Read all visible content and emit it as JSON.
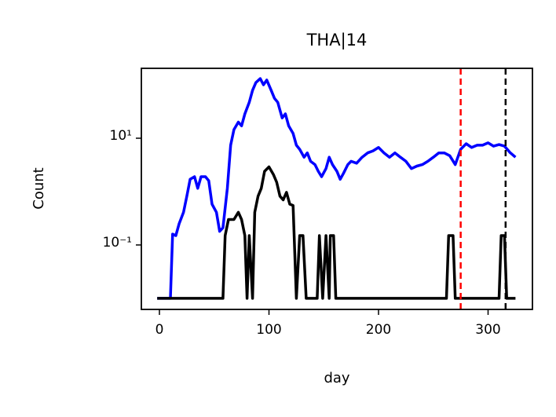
{
  "chart_data": {
    "type": "line",
    "title": "THA|14",
    "xlabel": "day",
    "ylabel": "Count",
    "xlim": [
      -16.5,
      340.5
    ],
    "xticks": [
      0,
      100,
      200,
      300
    ],
    "ylim": [
      0.0062,
      204
    ],
    "yticks": [
      {
        "value": 0.1,
        "label": "10⁻¹"
      },
      {
        "value": 10,
        "label": "10¹"
      }
    ],
    "log_y": true,
    "grid": false,
    "series": [
      {
        "color": "#0000ff",
        "x": [
          -2,
          10,
          12,
          15,
          18,
          22,
          25,
          28,
          32,
          35,
          38,
          42,
          45,
          48,
          52,
          55,
          58,
          62,
          65,
          68,
          72,
          75,
          78,
          82,
          85,
          88,
          92,
          95,
          98,
          102,
          105,
          108,
          112,
          115,
          118,
          122,
          125,
          128,
          132,
          135,
          138,
          142,
          145,
          148,
          152,
          155,
          158,
          162,
          165,
          168,
          172,
          175,
          180,
          185,
          190,
          195,
          200,
          205,
          210,
          215,
          220,
          225,
          230,
          235,
          240,
          245,
          250,
          255,
          260,
          265,
          270,
          275,
          280,
          285,
          290,
          295,
          300,
          305,
          310,
          315,
          320,
          325
        ],
        "values": [
          0.01,
          0.01,
          0.16,
          0.15,
          0.25,
          0.41,
          0.82,
          1.7,
          1.9,
          1.15,
          1.9,
          1.9,
          1.6,
          0.58,
          0.41,
          0.18,
          0.21,
          1.15,
          7.4,
          14.5,
          20,
          17,
          28.6,
          47,
          79,
          110,
          131,
          100,
          123,
          79,
          56,
          47,
          24,
          28.6,
          17,
          12.3,
          7.4,
          6.2,
          4.4,
          5.3,
          3.7,
          3.2,
          2.4,
          1.9,
          2.7,
          4.4,
          3.2,
          2.4,
          1.7,
          2.2,
          3.2,
          3.7,
          3.4,
          4.4,
          5.3,
          5.8,
          6.7,
          5.3,
          4.4,
          5.3,
          4.4,
          3.7,
          2.7,
          3.0,
          3.2,
          3.7,
          4.4,
          5.3,
          5.3,
          4.7,
          3.2,
          6.2,
          7.9,
          6.7,
          7.4,
          7.4,
          8.2,
          7.1,
          7.6,
          7.1,
          5.4,
          4.4
        ]
      },
      {
        "color": "#000000",
        "x": [
          -2,
          58,
          60,
          63,
          68,
          72,
          75,
          78,
          80,
          82,
          85,
          87,
          90,
          93,
          96,
          100,
          104,
          107,
          110,
          113,
          116,
          119,
          122,
          125,
          128,
          131,
          134,
          144,
          146,
          149,
          152,
          155,
          156,
          159,
          161,
          262,
          264,
          268,
          270,
          310,
          312,
          315,
          317,
          325
        ],
        "values": [
          0.01,
          0.01,
          0.15,
          0.3,
          0.3,
          0.41,
          0.3,
          0.15,
          0.01,
          0.15,
          0.01,
          0.41,
          0.82,
          1.15,
          2.4,
          2.9,
          2.1,
          1.5,
          0.82,
          0.7,
          0.97,
          0.58,
          0.55,
          0.01,
          0.15,
          0.15,
          0.01,
          0.01,
          0.15,
          0.01,
          0.15,
          0.01,
          0.15,
          0.15,
          0.01,
          0.01,
          0.15,
          0.15,
          0.01,
          0.01,
          0.15,
          0.15,
          0.01,
          0.01
        ]
      }
    ],
    "vlines": [
      {
        "x": 275,
        "color": "#ff0000"
      },
      {
        "x": 316,
        "color": "#000000"
      }
    ]
  }
}
